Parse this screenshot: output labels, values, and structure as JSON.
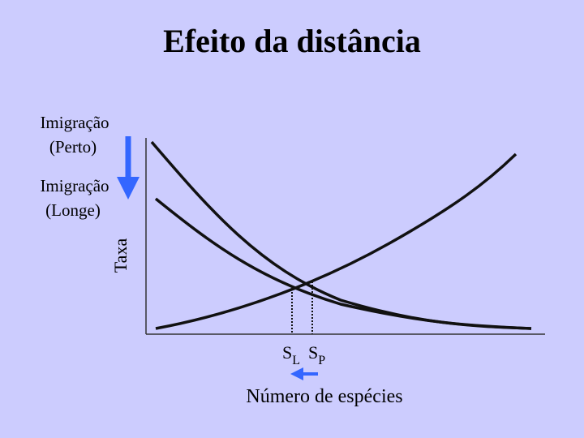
{
  "title": "Efeito da distância",
  "immigration_near": [
    "Imigração",
    "(Perto)"
  ],
  "immigration_far": [
    "Imigração",
    "(Longe)"
  ],
  "y_axis_label": "Taxa",
  "equilibria": {
    "far": {
      "symbol": "S",
      "subscript": "L"
    },
    "near": {
      "symbol": "S",
      "subscript": "P"
    }
  },
  "x_axis_label": "Número de espécies"
}
